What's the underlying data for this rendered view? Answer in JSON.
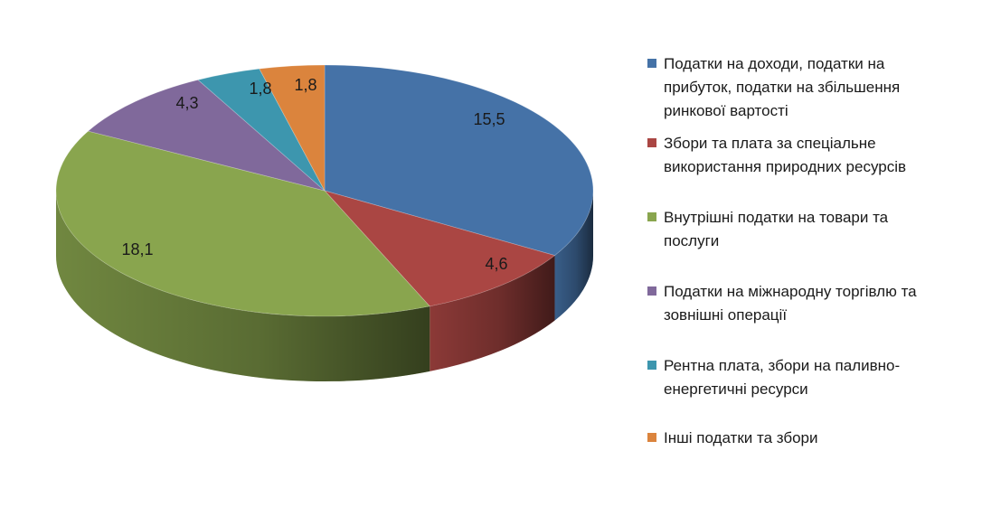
{
  "chart_data": {
    "type": "pie",
    "title": "",
    "value_labels": [
      "15,5",
      "4,6",
      "18,1",
      "4,3",
      "1,8",
      "1,8"
    ],
    "slices": [
      {
        "label": "Податки на доходи, податки на прибуток,  податки на збільшення ринкової вартості",
        "value": 15.5,
        "color": "#4572A7"
      },
      {
        "label": "Збори та плата за  спеціальне використання природних ресурсів",
        "value": 4.6,
        "color": "#AA4643"
      },
      {
        "label": "Внутрішні податки на товари та послуги",
        "value": 18.1,
        "color": "#89A54E"
      },
      {
        "label": "Податки на міжнародну торгівлю та зовнішні операції",
        "value": 4.3,
        "color": "#80699B"
      },
      {
        "label": "Рентна плата, збори на паливно-енергетичні ресурси",
        "value": 1.8,
        "color": "#3D96AE"
      },
      {
        "label": "Інші податки та збори",
        "value": 1.8,
        "color": "#DB843D"
      }
    ],
    "legend_position": "right",
    "style": "3d-pie"
  },
  "legend": {
    "items": [
      {
        "text": "Податки на доходи, податки на\nприбуток,  податки на збільшення\nринкової вартості",
        "color": "#4572A7"
      },
      {
        "text": "Збори та плата за  спеціальне\nвикористання природних ресурсів",
        "color": "#AA4643"
      },
      {
        "text": "Внутрішні податки на товари та\nпослуги",
        "color": "#89A54E"
      },
      {
        "text": "Податки на міжнародну торгівлю та\nзовнішні операції",
        "color": "#80699B"
      },
      {
        "text": "Рентна плата, збори на паливно-\nенергетичні ресурси",
        "color": "#3D96AE"
      },
      {
        "text": "Інші податки та збори",
        "color": "#DB843D"
      }
    ]
  }
}
